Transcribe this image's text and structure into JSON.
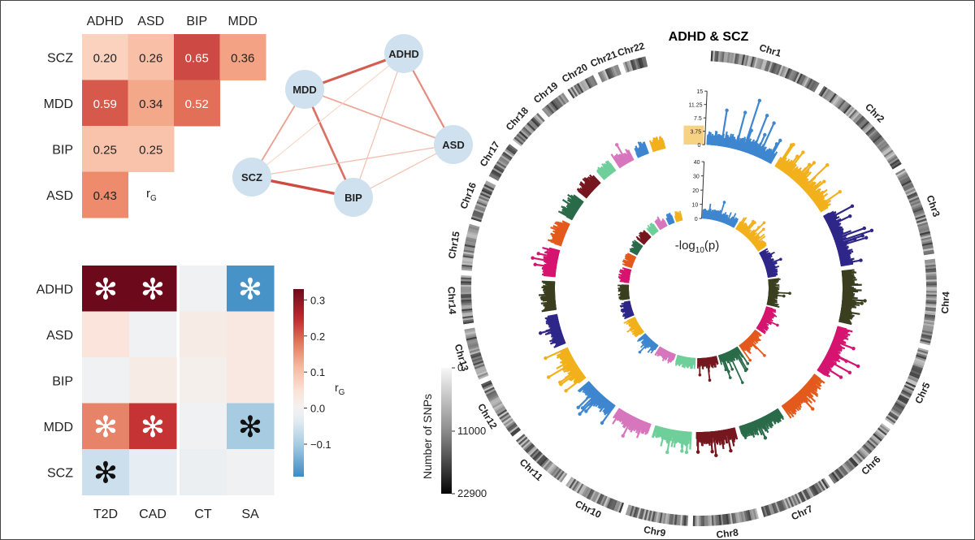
{
  "chart_data": [
    {
      "type": "heatmap",
      "panel": "genetic-correlation-upper",
      "columns": [
        "ADHD",
        "ASD",
        "BIP",
        "MDD"
      ],
      "rows": [
        "SCZ",
        "MDD",
        "BIP",
        "ASD"
      ],
      "cells": [
        {
          "row": "SCZ",
          "col": "ADHD",
          "value": 0.2,
          "label": "0.20"
        },
        {
          "row": "SCZ",
          "col": "ASD",
          "value": 0.26,
          "label": "0.26"
        },
        {
          "row": "SCZ",
          "col": "BIP",
          "value": 0.65,
          "label": "0.65"
        },
        {
          "row": "SCZ",
          "col": "MDD",
          "value": 0.36,
          "label": "0.36"
        },
        {
          "row": "MDD",
          "col": "ADHD",
          "value": 0.59,
          "label": "0.59"
        },
        {
          "row": "MDD",
          "col": "ASD",
          "value": 0.34,
          "label": "0.34"
        },
        {
          "row": "MDD",
          "col": "BIP",
          "value": 0.52,
          "label": "0.52"
        },
        {
          "row": "BIP",
          "col": "ADHD",
          "value": 0.25,
          "label": "0.25"
        },
        {
          "row": "BIP",
          "col": "ASD",
          "value": 0.25,
          "label": "0.25"
        },
        {
          "row": "ASD",
          "col": "ADHD",
          "value": 0.43,
          "label": "0.43"
        }
      ],
      "legend_label": "r",
      "legend_label_sub": "G"
    },
    {
      "type": "network",
      "panel": "correlation-network",
      "nodes": [
        "ADHD",
        "MDD",
        "ASD",
        "SCZ",
        "BIP"
      ],
      "edges": [
        {
          "a": "MDD",
          "b": "ADHD",
          "value": 0.59
        },
        {
          "a": "SCZ",
          "b": "BIP",
          "value": 0.65
        },
        {
          "a": "MDD",
          "b": "BIP",
          "value": 0.52
        },
        {
          "a": "BIP",
          "b": "ADHD",
          "value": 0.25
        },
        {
          "a": "MDD",
          "b": "ASD",
          "value": 0.34
        },
        {
          "a": "ASD",
          "b": "ADHD",
          "value": 0.43
        },
        {
          "a": "SCZ",
          "b": "MDD",
          "value": 0.36
        },
        {
          "a": "SCZ",
          "b": "ADHD",
          "value": 0.2
        },
        {
          "a": "SCZ",
          "b": "ASD",
          "value": 0.26
        },
        {
          "a": "BIP",
          "b": "ASD",
          "value": 0.25
        }
      ]
    },
    {
      "type": "heatmap",
      "panel": "cross-trait-correlation",
      "columns": [
        "T2D",
        "CAD",
        "CT",
        "SA"
      ],
      "rows": [
        "ADHD",
        "ASD",
        "BIP",
        "MDD",
        "SCZ"
      ],
      "values": [
        [
          0.33,
          0.33,
          -0.01,
          -0.18
        ],
        [
          0.04,
          -0.01,
          0.02,
          0.03
        ],
        [
          -0.01,
          0.02,
          0.01,
          0.03
        ],
        [
          0.17,
          0.24,
          -0.01,
          -0.1
        ],
        [
          -0.06,
          -0.03,
          -0.02,
          -0.01
        ]
      ],
      "significant": [
        [
          true,
          true,
          false,
          true
        ],
        [
          false,
          false,
          false,
          false
        ],
        [
          false,
          false,
          false,
          false
        ],
        [
          true,
          true,
          false,
          true
        ],
        [
          true,
          false,
          false,
          false
        ]
      ],
      "star": "✻",
      "colorbar_ticks": [
        "0.3",
        "0.2",
        "0.1",
        "0.0",
        "−0.1"
      ],
      "colorbar_tick_values": [
        0.3,
        0.2,
        0.1,
        0.0,
        -0.1
      ],
      "colorbar_range": [
        -0.19,
        0.33
      ],
      "colorbar_label": "r",
      "colorbar_label_sub": "G"
    },
    {
      "type": "colorbar",
      "panel": "snp-density-legend",
      "label": "Number of SNPs",
      "ticks": [
        "0",
        "11000",
        "22900"
      ],
      "tick_values": [
        0,
        11000,
        22900
      ]
    },
    {
      "type": "circos-manhattan",
      "panel": "circular-manhattan",
      "title": "ADHD & SCZ",
      "chromosomes": [
        "Chr1",
        "Chr2",
        "Chr3",
        "Chr4",
        "Chr5",
        "Chr6",
        "Chr7",
        "Chr8",
        "Chr9",
        "Chr10",
        "Chr11",
        "Chr12",
        "Chr13",
        "Chr14",
        "Chr15",
        "Chr16",
        "Chr17",
        "Chr18",
        "Chr19",
        "Chr20",
        "Chr21",
        "Chr22"
      ],
      "chrom_sizes": [
        249,
        242,
        198,
        190,
        181,
        171,
        159,
        145,
        138,
        134,
        135,
        133,
        114,
        107,
        102,
        90,
        83,
        80,
        59,
        64,
        47,
        51
      ],
      "outer_track_ticks": [
        "15",
        "11.25",
        "7.5",
        "3.75",
        "0"
      ],
      "inner_track_ticks": [
        "40",
        "30",
        "20",
        "10",
        "0"
      ],
      "center_label": "-log",
      "center_label_sub": "10",
      "center_label_tail": "(p)",
      "colors": [
        "#3e86cf",
        "#f2b11c",
        "#2f2689",
        "#3a3f1f",
        "#d6146f",
        "#e35a1d",
        "#2a6b4a",
        "#76171f",
        "#6fcf9a",
        "#d776bd",
        "#3e86cf",
        "#f2b11c",
        "#2f2689",
        "#3a3f1f",
        "#d6146f",
        "#e35a1d",
        "#2a6b4a",
        "#76171f",
        "#6fcf9a",
        "#d776bd",
        "#3e86cf",
        "#f2b11c"
      ],
      "outer_peak_levels": [
        15.0,
        9.6,
        10.8,
        6.4,
        9.4,
        6.2,
        5.6,
        6.8,
        6.5,
        6.2,
        8.2,
        8.6,
        5.8,
        4.6,
        7.0,
        4.6,
        5.2,
        4.4,
        3.9,
        6.0,
        4.1,
        3.8
      ],
      "inner_peak_levels": [
        14,
        16,
        12,
        15,
        12,
        17,
        24,
        16,
        8,
        8,
        12,
        10,
        8,
        6,
        8,
        6,
        7,
        8,
        6,
        9,
        7,
        6
      ]
    }
  ]
}
